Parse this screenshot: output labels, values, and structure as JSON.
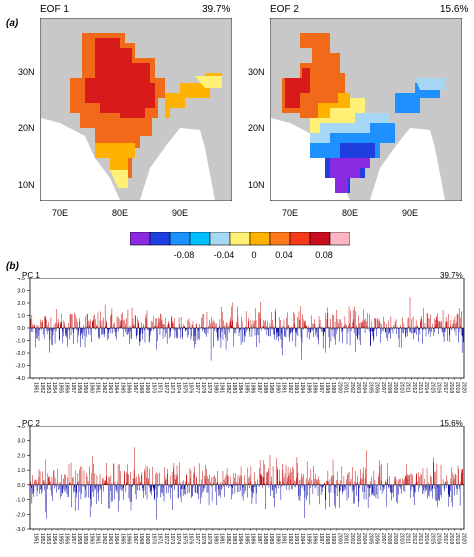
{
  "panel_a": {
    "letter": "(a)",
    "maps": [
      {
        "title": "EOF 1",
        "variance": "39.7%"
      },
      {
        "title": "EOF 2",
        "variance": "15.6%"
      }
    ],
    "lat_ticks": [
      "30N",
      "20N",
      "10N"
    ],
    "lon_ticks": [
      "70E",
      "80E",
      "90E"
    ],
    "colorbar": {
      "colors": [
        "#8a2be2",
        "#1f3ee0",
        "#1e90ff",
        "#00bfff",
        "#a6d8f5",
        "#fff176",
        "#ffb300",
        "#ff7a1a",
        "#f53a1b",
        "#c80e1e",
        "#ffb6c1"
      ],
      "labels": [
        "-0.08",
        "-0.04",
        "0",
        "0.04",
        "0.08"
      ]
    }
  },
  "panel_b": {
    "letter": "(b)",
    "colors": {
      "positive": "#c81010",
      "negative": "#1010a8"
    }
  },
  "chart_data": [
    {
      "type": "bar",
      "title": "PC 1",
      "variance": "39.7%",
      "ylim": [
        -4.0,
        4.0
      ],
      "yticks": [
        "4.0",
        "3.0",
        "2.0",
        "1.0",
        "0.0",
        "-1.0",
        "-2.0",
        "-3.0",
        "-4.0"
      ],
      "x_years": [
        "1951",
        "1952",
        "1953",
        "1954",
        "1955",
        "1956",
        "1957",
        "1958",
        "1959",
        "1960",
        "1961",
        "1962",
        "1963",
        "1964",
        "1965",
        "1966",
        "1967",
        "1968",
        "1969",
        "1970",
        "1971",
        "1972",
        "1973",
        "1974",
        "1975",
        "1976",
        "1977",
        "1978",
        "1979",
        "1980",
        "1981",
        "1982",
        "1983",
        "1984",
        "1985",
        "1986",
        "1987",
        "1988",
        "1989",
        "1990",
        "1991",
        "1992",
        "1993",
        "1994",
        "1995",
        "1996",
        "1997",
        "1998",
        "1999",
        "2000",
        "2001",
        "2002",
        "2003",
        "2004",
        "2005",
        "2006",
        "2007",
        "2008",
        "2009",
        "2010",
        "2011",
        "2012",
        "2013",
        "2014",
        "2015",
        "2016",
        "2017",
        "2018",
        "2019",
        "2020"
      ],
      "ylabel": "",
      "grid": false,
      "values_approx_peaks": {
        "max": 2.7,
        "min": -3.9
      }
    },
    {
      "type": "bar",
      "title": "PC 2",
      "variance": "15.6%",
      "ylim": [
        -3.0,
        4.0
      ],
      "yticks": [
        "4.0",
        "3.0",
        "2.0",
        "1.0",
        "0.0",
        "-1.0",
        "-2.0",
        "-3.0"
      ],
      "x_years": [
        "1951",
        "1952",
        "1953",
        "1954",
        "1955",
        "1956",
        "1957",
        "1958",
        "1959",
        "1960",
        "1961",
        "1962",
        "1963",
        "1964",
        "1965",
        "1966",
        "1967",
        "1968",
        "1969",
        "1970",
        "1971",
        "1972",
        "1973",
        "1974",
        "1975",
        "1976",
        "1977",
        "1978",
        "1979",
        "1980",
        "1981",
        "1982",
        "1983",
        "1984",
        "1985",
        "1986",
        "1987",
        "1988",
        "1989",
        "1990",
        "1991",
        "1992",
        "1993",
        "1994",
        "1995",
        "1996",
        "1997",
        "1998",
        "1999",
        "2000",
        "2001",
        "2002",
        "2003",
        "2004",
        "2005",
        "2006",
        "2007",
        "2008",
        "2009",
        "2010",
        "2011",
        "2012",
        "2013",
        "2014",
        "2015",
        "2016",
        "2017",
        "2018",
        "2019",
        "2020"
      ],
      "ylabel": "",
      "grid": false,
      "values_approx_peaks": {
        "max": 3.5,
        "min": -2.6
      }
    }
  ]
}
